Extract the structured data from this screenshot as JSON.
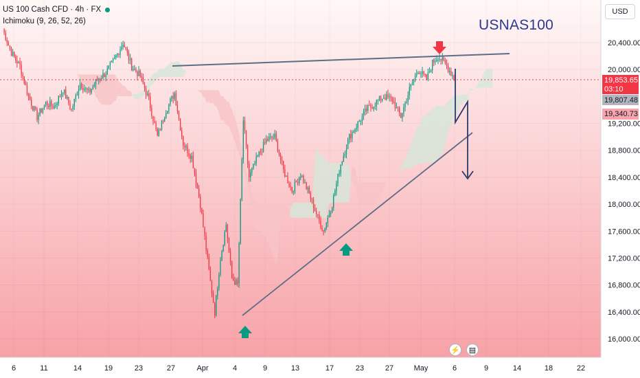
{
  "legend": {
    "symbol": "US 100 Cash CFD · 4h · FX",
    "indicator": "Ichimoku (9, 26, 52, 26)"
  },
  "watermark": "USNAS100",
  "currency": "USD",
  "price_tag": {
    "price": "19,853.65",
    "countdown": "03:10"
  },
  "tags": [
    "19,807.48",
    "19,340.73"
  ],
  "events": [
    {
      "icon": "lightning-icon",
      "symbol": "⚡"
    },
    {
      "icon": "us-flag-icon",
      "symbol": "▤"
    }
  ],
  "colors": {
    "up": "#089981",
    "down": "#f23645",
    "cloud_bull": "#d6e6d9",
    "cloud_bear": "#f7c4c7",
    "trend": "#5d6d86",
    "arrow_blue": "#2a3a6a",
    "background_top": "#fff5f5",
    "background_bottom": "#f8a3a8"
  },
  "chart_data": {
    "type": "candlestick",
    "y_axis": {
      "ticks": [
        "20,400.00",
        "20,000.00",
        "19,200.00",
        "18,800.00",
        "18,400.00",
        "18,000.00",
        "17,600.00",
        "17,200.00",
        "16,800.00",
        "16,400.00",
        "16,000.00"
      ],
      "values": [
        20400,
        20000,
        19200,
        18800,
        18400,
        18000,
        17600,
        17200,
        16800,
        16400,
        16000
      ],
      "range": [
        15900,
        20900
      ]
    },
    "x_axis": {
      "ticks": [
        "6",
        "11",
        "14",
        "19",
        "23",
        "27",
        "Apr",
        "4",
        "9",
        "13",
        "17",
        "23",
        "27",
        "May",
        "6",
        "9",
        "14",
        "18",
        "22"
      ]
    },
    "trend": "Mar 6 ~20,600 → fall to Apr 7 low ~16,400 → rebound Apr 9 ~19,200 → pullback Apr 21 ~17,600 → rally to ~20,200 (May 2) → current 19,853.65",
    "annotations": [
      {
        "type": "resistance_line",
        "from": {
          "x": "Mar 27",
          "y": 19990
        },
        "to": {
          "x": "May 13",
          "y": 20180
        }
      },
      {
        "type": "ascending_trendline",
        "from": {
          "x": "Apr 7",
          "y": 16340
        },
        "to": {
          "x": "May 8",
          "y": 19050
        }
      },
      {
        "type": "arrow_down",
        "color": "red",
        "at": "May 2"
      },
      {
        "type": "arrow_up",
        "color": "green",
        "at": "Apr 7"
      },
      {
        "type": "arrow_up",
        "color": "green",
        "at": "Apr 21"
      },
      {
        "type": "projection_path",
        "points": [
          19900,
          19200,
          19700,
          18400
        ]
      }
    ]
  }
}
